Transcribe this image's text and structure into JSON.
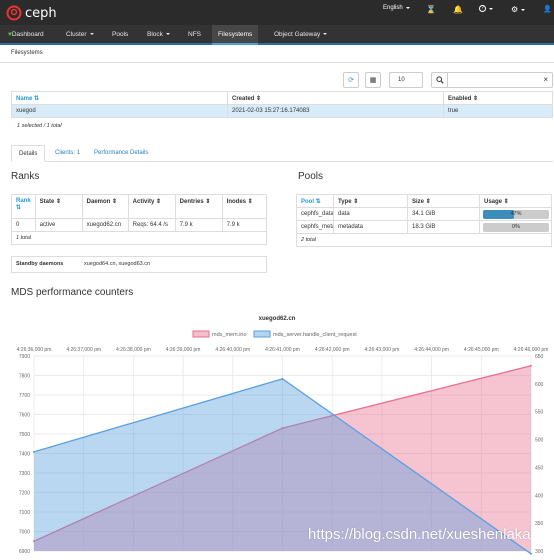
{
  "header": {
    "brand": "ceph",
    "language": "English",
    "hourglass_icon": "hourglass-icon",
    "bell_icon": "bell-icon",
    "help_icon": "help-icon",
    "gear_icon": "gear-icon",
    "user_icon": "user-icon"
  },
  "nav": {
    "items": [
      {
        "label": "Dashboard"
      },
      {
        "label": "Cluster"
      },
      {
        "label": "Pools"
      },
      {
        "label": "Block"
      },
      {
        "label": "NFS"
      },
      {
        "label": "Filesystems"
      },
      {
        "label": "Object Gateway"
      }
    ],
    "active": "Filesystems"
  },
  "breadcrumb": "Filesystems",
  "toolbar": {
    "page_size": "10",
    "search_placeholder": ""
  },
  "fs_table": {
    "columns": [
      "Name",
      "Created",
      "Enabled"
    ],
    "rows": [
      {
        "name": "xuegod",
        "created": "2021-02-03 15:27:16.174083",
        "enabled": "true"
      }
    ],
    "footer": "1 selected / 1 total"
  },
  "tabs": [
    {
      "label": "Details"
    },
    {
      "label": "Clients: 1"
    },
    {
      "label": "Performance Details"
    }
  ],
  "ranks": {
    "title": "Ranks",
    "columns": [
      "Rank",
      "State",
      "Daemon",
      "Activity",
      "Dentries",
      "Inodes"
    ],
    "rows": [
      {
        "rank": "0",
        "state": "active",
        "daemon": "xuegod62.cn",
        "activity": "Reqs: 64.4 /s",
        "dentries": "7.9 k",
        "inodes": "7.9 k"
      }
    ],
    "footer": "1 total"
  },
  "standby": {
    "label": "Standby daemons",
    "value": "xuegod64.cn, xuegod63.cn"
  },
  "pools": {
    "title": "Pools",
    "columns": [
      "Pool",
      "Type",
      "Size",
      "Usage"
    ],
    "rows": [
      {
        "pool": "cephfs_data",
        "type": "data",
        "size": "34.1 GiB",
        "usage": "47%",
        "usage_fraction": 0.47
      },
      {
        "pool": "cephfs_metadata",
        "type": "metadata",
        "size": "18.3 GiB",
        "usage": "0%",
        "usage_fraction": 0.0
      }
    ],
    "footer": "2 total"
  },
  "mds": {
    "title": "MDS performance counters"
  },
  "colors": {
    "accent": "#2b99d6",
    "navbar": "#333333",
    "topbar": "#2b2b2b",
    "pink_series": "#ea6f8e",
    "blue_series": "#5aa0e0"
  },
  "chart_data": {
    "type": "area",
    "title": "xuegod62.cn",
    "x_ticks": [
      "4:26:36,000 pm",
      "4:26:37,000 pm",
      "4:26:38,000 pm",
      "4:26:39,000 pm",
      "4:26:40,000 pm",
      "4:26:41,000 pm",
      "4:26:42,000 pm",
      "4:26:43,000 pm",
      "4:26:44,000 pm",
      "4:26:45,000 pm",
      "4:26:46,000 pm"
    ],
    "x_ticks_bottom": [
      "4:26:36,000 pm",
      "4:26:37,000 pm",
      "4:26:38,000 pm",
      "4:26:39,000 pm",
      "4:26:40,000 pm",
      "4:26:41,000 pm",
      "4:26:42,000 pm",
      "4:26:43,000 pm",
      "4:26:44,000 pm",
      "4:26:45,000 pm",
      "4:26:46,000 pm"
    ],
    "y_left_ticks": [
      6900,
      7000,
      7100,
      7200,
      7300,
      7400,
      7500,
      7600,
      7700,
      7800,
      7900
    ],
    "y_left_range": [
      6900,
      7900
    ],
    "y_right_ticks": [
      300,
      350,
      400,
      450,
      500,
      550,
      600,
      650
    ],
    "y_right_range": [
      300,
      650
    ],
    "legend_position": "top-center",
    "series": [
      {
        "name": "mds_mem.ino",
        "axis": "left",
        "color": "#ea6f8e",
        "x": [
          "4:26:36,000 pm",
          "4:26:41,000 pm",
          "4:26:46,000 pm"
        ],
        "y": [
          6950,
          7530,
          7850
        ]
      },
      {
        "name": "mds_server.handle_client_request",
        "axis": "right",
        "color": "#5aa0e0",
        "x": [
          "4:26:36,000 pm",
          "4:26:41,000 pm",
          "4:26:46,000 pm"
        ],
        "y": [
          478,
          609,
          295
        ]
      }
    ]
  }
}
